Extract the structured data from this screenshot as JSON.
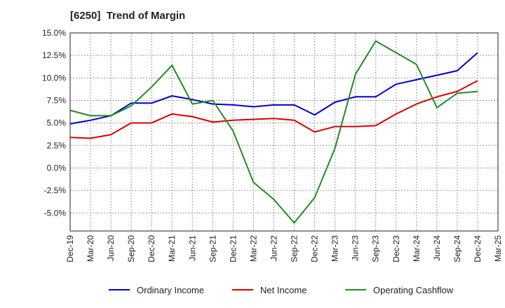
{
  "chart_data": {
    "type": "line",
    "title": "[6250]  Trend of Margin",
    "xlabel": "",
    "ylabel": "",
    "ylim": [
      -7.0,
      15.0
    ],
    "y_ticks": [
      "15.0%",
      "12.5%",
      "10.0%",
      "7.5%",
      "5.0%",
      "2.5%",
      "0.0%",
      "-2.5%",
      "-5.0%"
    ],
    "y_tick_values": [
      15.0,
      12.5,
      10.0,
      7.5,
      5.0,
      2.5,
      0.0,
      -2.5,
      -5.0
    ],
    "x_tick_labels": [
      "Dec-19",
      "Mar-20",
      "Jun-20",
      "Sep-20",
      "Dec-20",
      "Mar-21",
      "Jun-21",
      "Sep-21",
      "Dec-21",
      "Mar-22",
      "Jun-22",
      "Sep-22",
      "Dec-22",
      "Mar-23",
      "Jun-23",
      "Sep-23",
      "Dec-23",
      "Mar-24",
      "Jun-24",
      "Sep-24",
      "Dec-24",
      "Mar-25"
    ],
    "grid": true,
    "legend_position": "bottom",
    "series": [
      {
        "name": "Ordinary Income",
        "color": "#0000cc",
        "values": [
          4.9,
          5.3,
          5.8,
          7.2,
          7.2,
          8.0,
          7.6,
          7.1,
          7.0,
          6.8,
          7.0,
          7.0,
          5.9,
          7.3,
          7.9,
          7.9,
          9.3,
          9.8,
          10.3,
          10.8,
          12.8
        ]
      },
      {
        "name": "Net Income",
        "color": "#dd0000",
        "values": [
          3.4,
          3.3,
          3.7,
          5.0,
          5.0,
          6.0,
          5.7,
          5.1,
          5.3,
          5.4,
          5.5,
          5.3,
          4.0,
          4.6,
          4.6,
          4.7,
          6.0,
          7.1,
          7.9,
          8.5,
          9.7
        ]
      },
      {
        "name": "Operating Cashflow",
        "color": "#228b22",
        "values": [
          6.4,
          5.8,
          5.8,
          6.9,
          9.0,
          11.4,
          7.1,
          7.5,
          4.1,
          -1.6,
          -3.5,
          -6.1,
          -3.3,
          2.2,
          10.4,
          14.1,
          12.8,
          11.5,
          6.7,
          8.3,
          8.5
        ]
      }
    ]
  }
}
